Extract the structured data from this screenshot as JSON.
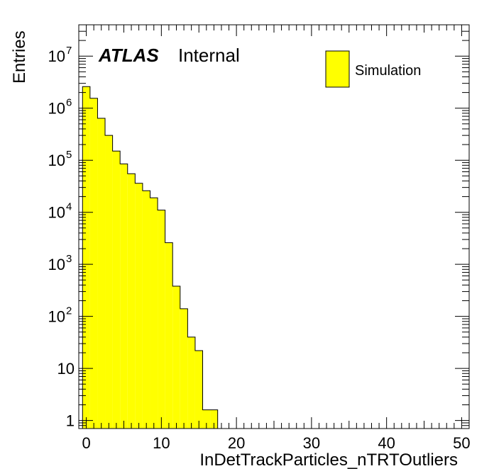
{
  "chart_data": {
    "type": "bar",
    "xlabel": "InDetTrackParticles_nTRTOutliers",
    "ylabel": "Entries",
    "yscale": "log",
    "xlim": [
      -1,
      51
    ],
    "ylim": [
      0.7,
      40000000
    ],
    "bin_width": 1,
    "fill_color": "#ffff00",
    "line_color": "#000000",
    "atlas_label": "ATLAS",
    "atlas_sublabel": "Internal",
    "legend": {
      "entries": [
        "Simulation"
      ],
      "placement": "top-right"
    },
    "x_ticks": [
      {
        "value": 0,
        "label": "0"
      },
      {
        "value": 10,
        "label": "10"
      },
      {
        "value": 20,
        "label": "20"
      },
      {
        "value": 30,
        "label": "30"
      },
      {
        "value": 40,
        "label": "40"
      },
      {
        "value": 50,
        "label": "50"
      }
    ],
    "y_ticks": [
      {
        "value": 1,
        "base": "1",
        "exp": ""
      },
      {
        "value": 10,
        "base": "10",
        "exp": ""
      },
      {
        "value": 100,
        "base": "10",
        "exp": "2"
      },
      {
        "value": 1000,
        "base": "10",
        "exp": "3"
      },
      {
        "value": 10000,
        "base": "10",
        "exp": "4"
      },
      {
        "value": 100000,
        "base": "10",
        "exp": "5"
      },
      {
        "value": 1000000,
        "base": "10",
        "exp": "6"
      },
      {
        "value": 10000000,
        "base": "10",
        "exp": "7"
      }
    ],
    "series": [
      {
        "name": "Simulation",
        "bins": [
          {
            "x": -0.5,
            "value": 2600000
          },
          {
            "x": 0.5,
            "value": 1550000
          },
          {
            "x": 1.5,
            "value": 640000
          },
          {
            "x": 2.5,
            "value": 300000
          },
          {
            "x": 3.5,
            "value": 150000
          },
          {
            "x": 4.5,
            "value": 85000
          },
          {
            "x": 5.5,
            "value": 55000
          },
          {
            "x": 6.5,
            "value": 36000
          },
          {
            "x": 7.5,
            "value": 26000
          },
          {
            "x": 8.5,
            "value": 19000
          },
          {
            "x": 9.5,
            "value": 11000
          },
          {
            "x": 10.5,
            "value": 2600
          },
          {
            "x": 11.5,
            "value": 380
          },
          {
            "x": 12.5,
            "value": 140
          },
          {
            "x": 13.5,
            "value": 40
          },
          {
            "x": 14.5,
            "value": 22
          },
          {
            "x": 15.5,
            "value": 1.6
          },
          {
            "x": 16.5,
            "value": 1.6
          }
        ]
      }
    ]
  }
}
